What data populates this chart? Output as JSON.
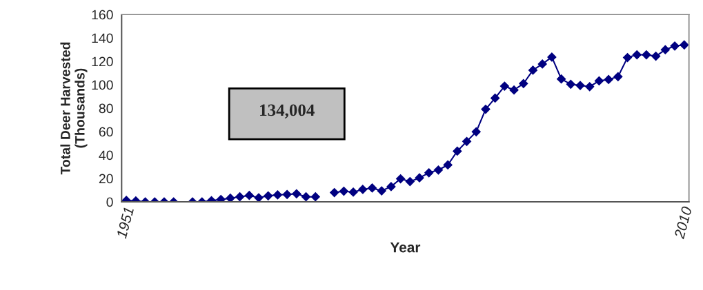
{
  "chart_data": {
    "type": "line",
    "ylabel": "Total Deer Harvested\n(Thousands)",
    "xlabel": "Year",
    "categories": [
      "1951",
      null,
      null,
      null,
      null,
      null,
      null,
      null,
      null,
      null,
      null,
      null,
      null,
      null,
      null,
      null,
      null,
      null,
      null,
      null,
      null,
      null,
      null,
      null,
      null,
      null,
      null,
      null,
      null,
      null,
      null,
      null,
      null,
      null,
      null,
      null,
      null,
      null,
      null,
      null,
      null,
      null,
      null,
      null,
      null,
      null,
      null,
      null,
      null,
      null,
      null,
      null,
      null,
      null,
      null,
      null,
      null,
      null,
      null,
      "2010"
    ],
    "series": [
      {
        "color": "#000080",
        "values": [
          1.2,
          0.8,
          0,
          0,
          0,
          0,
          null,
          0,
          0,
          1.0,
          2.0,
          3.1,
          4.3,
          5.5,
          3.5,
          5.1,
          5.9,
          6.3,
          6.9,
          4.3,
          4.3,
          null,
          7.9,
          9.1,
          8.3,
          10.6,
          11.8,
          9.4,
          13.0,
          19.7,
          17.3,
          20.5,
          24.8,
          27.2,
          31.5,
          43.3,
          51.6,
          59.8,
          79.1,
          88.6,
          98.8,
          95.5,
          101.0,
          112.4,
          117.7,
          123.6,
          104.9,
          100.4,
          99.4,
          98.4,
          103.3,
          104.5,
          106.9,
          123.2,
          125.6,
          125.6,
          124.4,
          129.9,
          133.1,
          134.0
        ]
      }
    ],
    "ylim": [
      0,
      160
    ],
    "yticks": [
      0,
      20,
      40,
      60,
      80,
      100,
      120,
      140,
      160
    ],
    "marker": "diamond",
    "line_style": "solid",
    "grid": false,
    "legend": false,
    "annotations": [
      "134,004"
    ]
  }
}
